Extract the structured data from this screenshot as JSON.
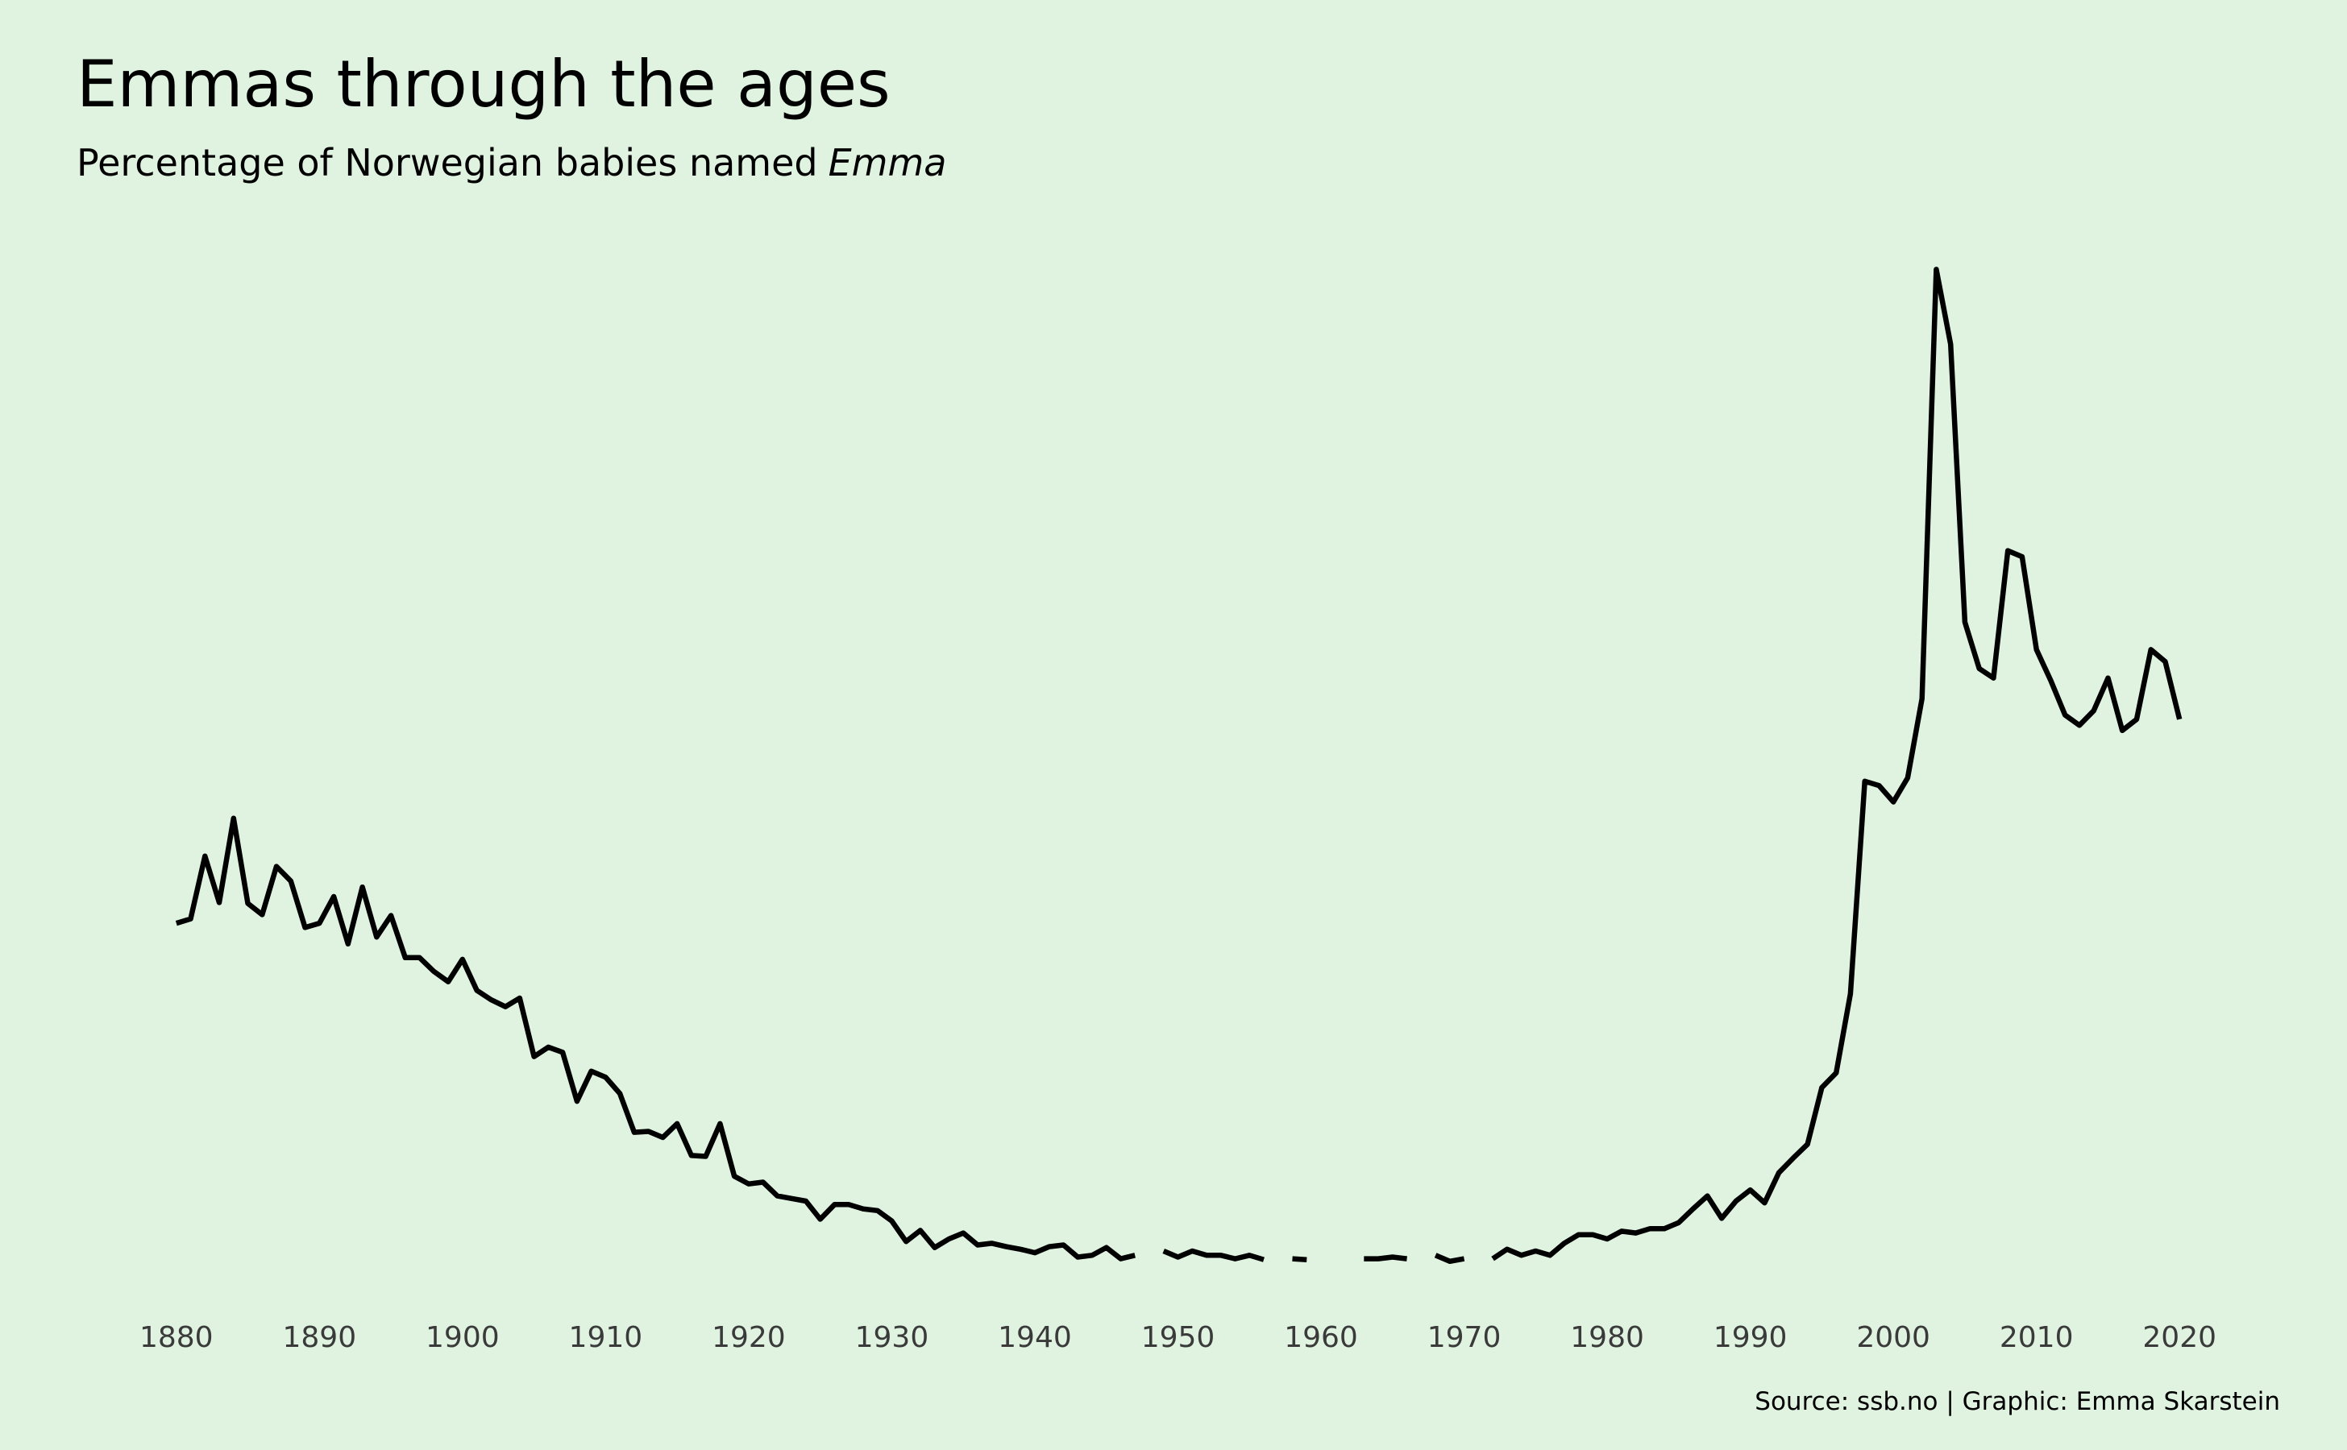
{
  "chart_data": {
    "type": "line",
    "title": "Emmas through the ages",
    "subtitle": {
      "text": "Percentage of Norwegian babies named",
      "emphasis": "Emma"
    },
    "caption": "Source: ssb.no | Graphic: Emma Skarstein",
    "x": [
      1880,
      1881,
      1882,
      1883,
      1884,
      1885,
      1886,
      1887,
      1888,
      1889,
      1890,
      1891,
      1892,
      1893,
      1894,
      1895,
      1896,
      1897,
      1898,
      1899,
      1900,
      1901,
      1902,
      1903,
      1904,
      1905,
      1906,
      1907,
      1908,
      1909,
      1910,
      1911,
      1912,
      1913,
      1914,
      1915,
      1916,
      1917,
      1918,
      1919,
      1920,
      1921,
      1922,
      1923,
      1924,
      1925,
      1926,
      1927,
      1928,
      1929,
      1930,
      1931,
      1932,
      1933,
      1934,
      1935,
      1936,
      1937,
      1938,
      1939,
      1940,
      1941,
      1942,
      1943,
      1944,
      1945,
      1946,
      1947,
      1948,
      1949,
      1950,
      1951,
      1952,
      1953,
      1954,
      1955,
      1956,
      1957,
      1958,
      1959,
      1960,
      1961,
      1962,
      1963,
      1964,
      1965,
      1966,
      1967,
      1968,
      1969,
      1970,
      1971,
      1972,
      1973,
      1974,
      1975,
      1976,
      1977,
      1978,
      1979,
      1980,
      1981,
      1982,
      1983,
      1984,
      1985,
      1986,
      1987,
      1988,
      1989,
      1990,
      1991,
      1992,
      1993,
      1994,
      1995,
      1996,
      1997,
      1998,
      1999,
      2000,
      2001,
      2002,
      2003,
      2004,
      2005,
      2006,
      2007,
      2008,
      2009,
      2010,
      2011,
      2012,
      2013,
      2014,
      2015,
      2016,
      2017,
      2018,
      2019,
      2020
    ],
    "series": [
      {
        "color": "#000000",
        "values": [
          0.44,
          0.445,
          0.518,
          0.464,
          0.562,
          0.463,
          0.45,
          0.506,
          0.489,
          0.435,
          0.44,
          0.471,
          0.416,
          0.482,
          0.424,
          0.449,
          0.4,
          0.4,
          0.384,
          0.372,
          0.398,
          0.362,
          0.351,
          0.343,
          0.353,
          0.285,
          0.296,
          0.29,
          0.233,
          0.268,
          0.261,
          0.242,
          0.197,
          0.198,
          0.191,
          0.207,
          0.17,
          0.169,
          0.207,
          0.146,
          0.137,
          0.139,
          0.123,
          0.12,
          0.117,
          0.096,
          0.113,
          0.113,
          0.108,
          0.106,
          0.094,
          0.07,
          0.083,
          0.063,
          0.073,
          0.08,
          0.066,
          0.068,
          0.064,
          0.061,
          0.057,
          0.064,
          0.066,
          0.052,
          0.054,
          0.063,
          0.05,
          0.054,
          null,
          0.059,
          0.052,
          0.059,
          0.054,
          0.054,
          0.05,
          0.054,
          0.049,
          null,
          0.05,
          0.049,
          null,
          null,
          null,
          0.05,
          0.05,
          0.052,
          0.05,
          null,
          0.054,
          0.047,
          0.05,
          null,
          0.05,
          0.061,
          0.054,
          0.059,
          0.054,
          0.068,
          0.078,
          0.078,
          0.073,
          0.082,
          0.08,
          0.085,
          0.085,
          0.092,
          0.108,
          0.123,
          0.097,
          0.117,
          0.13,
          0.115,
          0.15,
          0.167,
          0.183,
          0.249,
          0.266,
          0.358,
          0.605,
          0.6,
          0.581,
          0.609,
          0.701,
          1.2,
          1.113,
          0.79,
          0.736,
          0.725,
          0.873,
          0.866,
          0.758,
          0.722,
          0.682,
          0.67,
          0.687,
          0.725,
          0.664,
          0.677,
          0.758,
          0.744,
          0.677
        ]
      }
    ],
    "xlim": [
      1875,
      2025
    ],
    "ylim": [
      0,
      1.22
    ],
    "xticks": [
      1880,
      1890,
      1900,
      1910,
      1920,
      1930,
      1940,
      1950,
      1960,
      1970,
      1980,
      1990,
      2000,
      2010,
      2020
    ],
    "background": "#dff3e0"
  }
}
